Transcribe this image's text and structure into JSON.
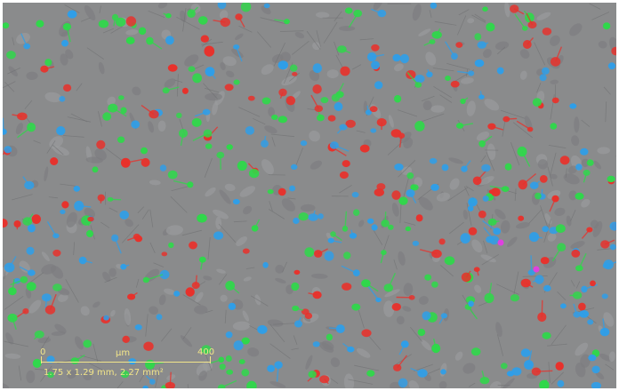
{
  "image": {
    "description": "",
    "background_color": "#8a8b8c",
    "cell_colors": {
      "red": "#e8312b",
      "green": "#2fd84a",
      "blue": "#2f9ee8",
      "magenta": "#e040e0"
    }
  },
  "scale_bar": {
    "start_label": "0",
    "unit_label": "µm",
    "end_label": "400",
    "info": "1.75 x 1.29 mm, 2.27 mm²",
    "color": "#f2e58a"
  }
}
